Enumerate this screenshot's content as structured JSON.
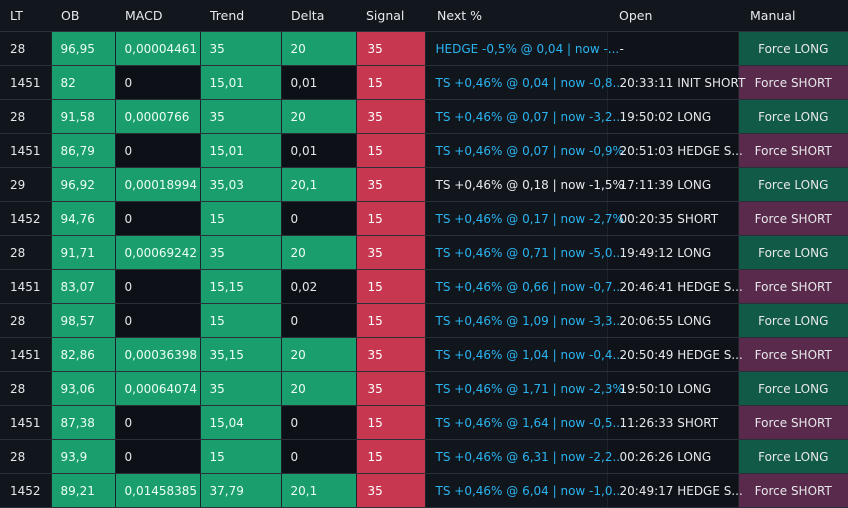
{
  "headers": {
    "lt": "LT",
    "ob": "OB",
    "macd": "MACD",
    "trend": "Trend",
    "delta": "Delta",
    "signal": "Signal",
    "next": "Next %",
    "open": "Open",
    "manual": "Manual"
  },
  "rows": [
    {
      "lt": "28",
      "ob": "96,95",
      "macd": "0,00004461",
      "trend": "35",
      "delta": "20",
      "signal": "35",
      "next": "HEDGE -0,5% @ 0,04 | now -...",
      "open": "-",
      "manual": "Force LONG"
    },
    {
      "lt": "1451",
      "ob": "82",
      "macd": "0",
      "trend": "15,01",
      "delta": "0,01",
      "signal": "15",
      "next": "TS +0,46% @ 0,04 | now -0,8...",
      "open": "20:33:11 INIT SHORT",
      "manual": "Force SHORT"
    },
    {
      "lt": "28",
      "ob": "91,58",
      "macd": "0,0000766",
      "trend": "35",
      "delta": "20",
      "signal": "35",
      "next": "TS +0,46% @ 0,07 | now -3,2...",
      "open": "19:50:02 LONG",
      "manual": "Force LONG"
    },
    {
      "lt": "1451",
      "ob": "86,79",
      "macd": "0",
      "trend": "15,01",
      "delta": "0,01",
      "signal": "15",
      "next": "TS +0,46% @ 0,07 | now -0,9%",
      "open": "20:51:03 HEDGE S...",
      "manual": "Force SHORT"
    },
    {
      "lt": "29",
      "ob": "96,92",
      "macd": "0,00018994",
      "trend": "35,03",
      "delta": "20,1",
      "signal": "35",
      "next": "TS +0,46% @ 0,18 | now -1,5%",
      "open": "17:11:39 LONG",
      "manual": "Force LONG"
    },
    {
      "lt": "1452",
      "ob": "94,76",
      "macd": "0",
      "trend": "15",
      "delta": "0",
      "signal": "15",
      "next": "TS +0,46% @ 0,17 | now -2,7%",
      "open": "00:20:35 SHORT",
      "manual": "Force SHORT"
    },
    {
      "lt": "28",
      "ob": "91,71",
      "macd": "0,00069242",
      "trend": "35",
      "delta": "20",
      "signal": "35",
      "next": "TS +0,46% @ 0,71 | now -5,0...",
      "open": "19:49:12 LONG",
      "manual": "Force LONG"
    },
    {
      "lt": "1451",
      "ob": "83,07",
      "macd": "0",
      "trend": "15,15",
      "delta": "0,02",
      "signal": "15",
      "next": "TS +0,46% @ 0,66 | now -0,7...",
      "open": "20:46:41 HEDGE S...",
      "manual": "Force SHORT"
    },
    {
      "lt": "28",
      "ob": "98,57",
      "macd": "0",
      "trend": "15",
      "delta": "0",
      "signal": "15",
      "next": "TS +0,46% @ 1,09 | now -3,3...",
      "open": "20:06:55 LONG",
      "manual": "Force LONG"
    },
    {
      "lt": "1451",
      "ob": "82,86",
      "macd": "0,00036398",
      "trend": "35,15",
      "delta": "20",
      "signal": "35",
      "next": "TS +0,46% @ 1,04 | now -0,4...",
      "open": "20:50:49 HEDGE S...",
      "manual": "Force SHORT"
    },
    {
      "lt": "28",
      "ob": "93,06",
      "macd": "0,00064074",
      "trend": "35",
      "delta": "20",
      "signal": "35",
      "next": "TS +0,46% @ 1,71 | now -2,3%",
      "open": "19:50:10 LONG",
      "manual": "Force LONG"
    },
    {
      "lt": "1451",
      "ob": "87,38",
      "macd": "0",
      "trend": "15,04",
      "delta": "0",
      "signal": "15",
      "next": "TS +0,46% @ 1,64 | now -0,5...",
      "open": "11:26:33 SHORT",
      "manual": "Force SHORT"
    },
    {
      "lt": "28",
      "ob": "93,9",
      "macd": "0",
      "trend": "15",
      "delta": "0",
      "signal": "15",
      "next": "TS +0,46% @ 6,31 | now -2,2...",
      "open": "00:26:26 LONG",
      "manual": "Force LONG"
    },
    {
      "lt": "1452",
      "ob": "89,21",
      "macd": "0,01458385",
      "trend": "37,79",
      "delta": "20,1",
      "signal": "35",
      "next": "TS +0,46% @ 6,04 | now -1,0...",
      "open": "20:49:17 HEDGE S...",
      "manual": "Force SHORT"
    }
  ]
}
